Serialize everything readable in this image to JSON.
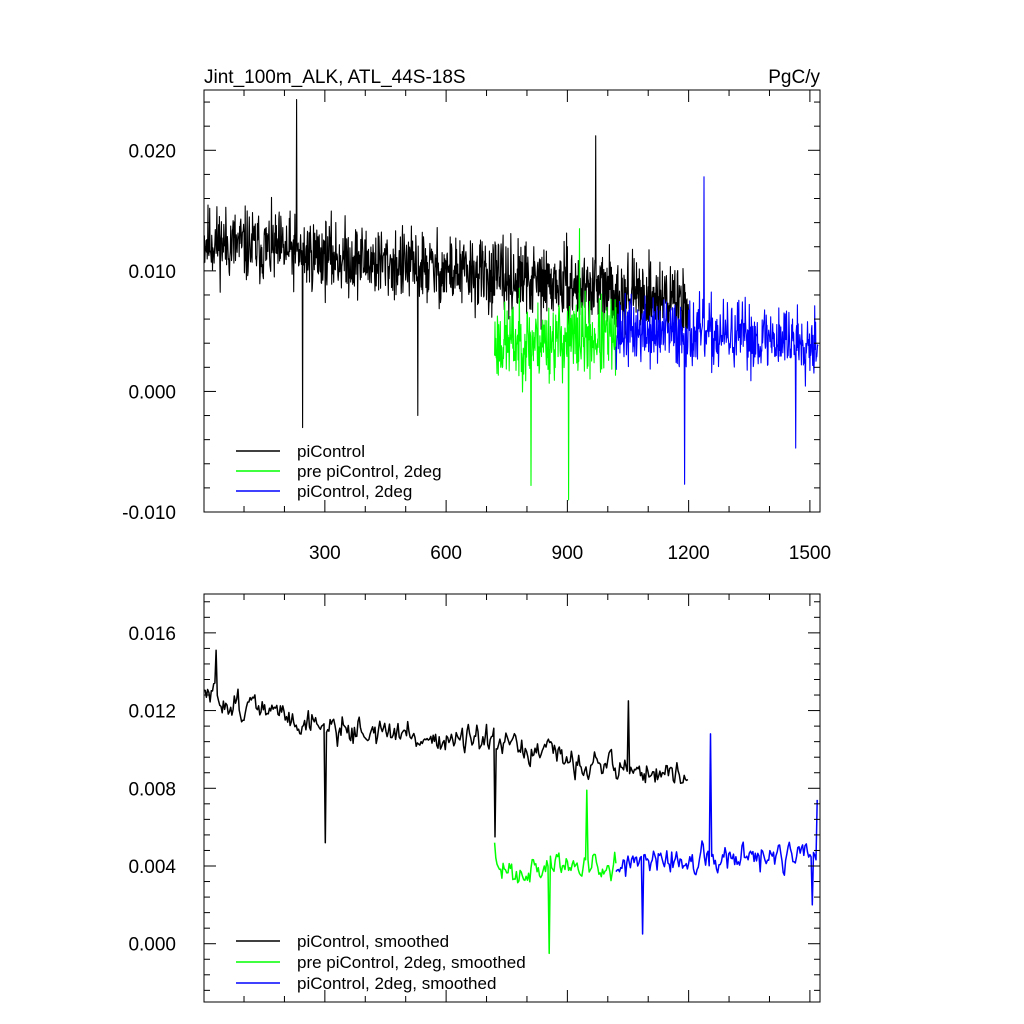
{
  "chart_data": [
    {
      "type": "line",
      "title": "Jint_100m_ALK, ATL_44S-18S",
      "units": "PgC/y",
      "xlim": [
        1,
        1525
      ],
      "ylim": [
        -0.01,
        0.025
      ],
      "xticks": [
        300,
        600,
        900,
        1200,
        1500
      ],
      "yticks": [
        -0.01,
        0.0,
        0.01,
        0.02
      ],
      "ytick_labels": [
        "-0.010",
        "0.000",
        "0.010",
        "0.020"
      ],
      "legend_position": "bottom-left",
      "series": [
        {
          "name": "piControl",
          "color": "#000000",
          "x_start": 1,
          "x_end": 1200,
          "mean_trend": [
            [
              1,
              0.0125
            ],
            [
              720,
              0.0095
            ],
            [
              1200,
              0.0075
            ]
          ],
          "spread": 0.0045,
          "seed": 11,
          "extremes": [
            [
              230,
              0.0242
            ],
            [
              245,
              -0.003
            ],
            [
              530,
              -0.002
            ],
            [
              970,
              0.0212
            ]
          ]
        },
        {
          "name": "pre piControl, 2deg",
          "color": "#00ff00",
          "x_start": 720,
          "x_end": 1020,
          "mean_trend": [
            [
              720,
              0.004
            ],
            [
              1020,
              0.0045
            ]
          ],
          "spread": 0.0048,
          "seed": 23,
          "extremes": [
            [
              903,
              -0.009
            ],
            [
              930,
              0.0135
            ],
            [
              810,
              -0.0078
            ]
          ]
        },
        {
          "name": "piControl, 2deg",
          "color": "#0000ff",
          "x_start": 1020,
          "x_end": 1520,
          "mean_trend": [
            [
              1020,
              0.005
            ],
            [
              1520,
              0.0042
            ]
          ],
          "spread": 0.0042,
          "seed": 37,
          "extremes": [
            [
              1238,
              0.0178
            ],
            [
              1190,
              -0.0077
            ],
            [
              1465,
              -0.0047
            ]
          ]
        }
      ]
    },
    {
      "type": "line",
      "title": "",
      "xlim": [
        1,
        1525
      ],
      "ylim": [
        -0.003,
        0.018
      ],
      "xticks": [
        300,
        600,
        900,
        1200,
        1500
      ],
      "yticks": [
        0.0,
        0.004,
        0.008,
        0.012,
        0.016
      ],
      "ytick_labels": [
        "0.000",
        "0.004",
        "0.008",
        "0.012",
        "0.016"
      ],
      "legend_position": "bottom-left",
      "series": [
        {
          "name": "piControl, smoothed",
          "color": "#000000",
          "x_start": 1,
          "x_end": 1200,
          "mean_trend": [
            [
              1,
              0.0128
            ],
            [
              300,
              0.0112
            ],
            [
              720,
              0.0102
            ],
            [
              900,
              0.0095
            ],
            [
              1200,
              0.0085
            ]
          ],
          "spread": 0.0013,
          "seed": 51,
          "extremes": [
            [
              30,
              0.0151
            ],
            [
              300,
              0.0052
            ],
            [
              720,
              0.0055
            ],
            [
              1050,
              0.0125
            ]
          ]
        },
        {
          "name": "pre piControl, 2deg, smoothed",
          "color": "#00ff00",
          "x_start": 720,
          "x_end": 1020,
          "mean_trend": [
            [
              720,
              0.0038
            ],
            [
              1020,
              0.0042
            ]
          ],
          "spread": 0.0013,
          "seed": 63,
          "extremes": [
            [
              855,
              -0.0005
            ],
            [
              948,
              0.0079
            ],
            [
              720,
              0.0052
            ]
          ]
        },
        {
          "name": "piControl, 2deg, smoothed",
          "color": "#0000ff",
          "x_start": 1020,
          "x_end": 1520,
          "mean_trend": [
            [
              1020,
              0.004
            ],
            [
              1520,
              0.0045
            ]
          ],
          "spread": 0.0014,
          "seed": 77,
          "extremes": [
            [
              1255,
              0.0108
            ],
            [
              1085,
              0.0005
            ],
            [
              1505,
              0.002
            ],
            [
              1520,
              0.0074
            ]
          ]
        }
      ]
    }
  ]
}
